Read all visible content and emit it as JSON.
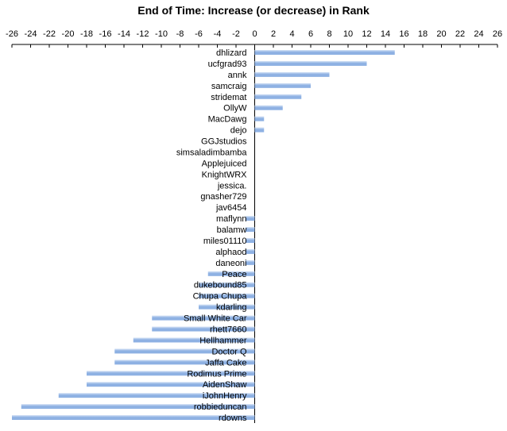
{
  "chart_data": {
    "type": "bar",
    "orientation": "horizontal",
    "title": "End of Time: Increase (or decrease) in Rank",
    "xlabel": "",
    "ylabel": "",
    "xlim": [
      -26,
      26
    ],
    "x_ticks": [
      -26,
      -24,
      -22,
      -20,
      -18,
      -16,
      -14,
      -12,
      -10,
      -8,
      -6,
      -4,
      -2,
      0,
      2,
      4,
      6,
      8,
      10,
      12,
      14,
      16,
      18,
      20,
      22,
      24,
      26
    ],
    "x_axis_position": "top",
    "grid": false,
    "legend": "none",
    "bar_color": "#8eb1e3",
    "bar_highlight": "#d7e4f6",
    "categories": [
      "dhlizard",
      "ucfgrad93",
      "annk",
      "samcraig",
      "stridemat",
      "OllyW",
      "MacDawg",
      "dejo",
      "GGJstudios",
      "simsaladimbamba",
      "Applejuiced",
      "KnightWRX",
      "jessica.",
      "gnasher729",
      "jav6454",
      "maflynn",
      "balamw",
      "miles01110",
      "alphaod",
      "daneoni",
      "Peace",
      "dukebound85",
      "Chupa Chupa",
      "kdarling",
      "Small White Car",
      "rhett7660",
      "Hellhammer",
      "Doctor Q",
      "Jaffa Cake",
      "Rodimus Prime",
      "AidenShaw",
      "iJohnHenry",
      "robbieduncan",
      "rdowns"
    ],
    "values": [
      15,
      12,
      8,
      6,
      5,
      3,
      1,
      1,
      0,
      0,
      0,
      0,
      0,
      0,
      0,
      -1,
      -1,
      -1,
      -1,
      -1,
      -5,
      -6,
      -6,
      -6,
      -11,
      -11,
      -13,
      -15,
      -15,
      -18,
      -18,
      -21,
      -25,
      -26
    ]
  }
}
